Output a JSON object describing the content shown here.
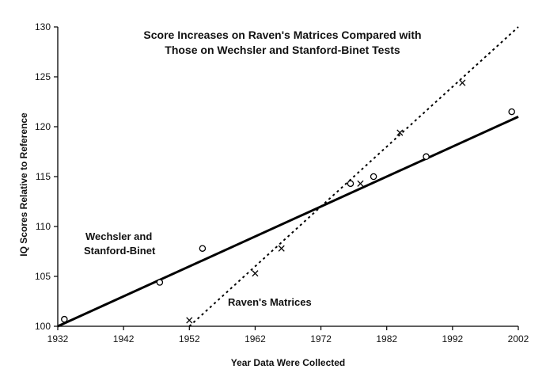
{
  "chart_data": {
    "type": "scatter",
    "title_lines": [
      "Score Increases on Raven's Matrices Compared with",
      "Those on Wechsler and Stanford-Binet Tests"
    ],
    "xlabel": "Year Data Were Collected",
    "ylabel": "IQ Scores Relative to Reference",
    "xlim": [
      1932,
      2002
    ],
    "ylim": [
      100,
      130
    ],
    "x_ticks": [
      1932,
      1942,
      1952,
      1962,
      1972,
      1982,
      1992,
      2002
    ],
    "y_ticks": [
      100,
      105,
      110,
      115,
      120,
      125,
      130
    ],
    "grid": false,
    "series": [
      {
        "label_lines": [
          "Wechsler and",
          "Stanford-Binet"
        ],
        "marker": "o",
        "points": [
          [
            1933,
            100.7
          ],
          [
            1947.5,
            104.4
          ],
          [
            1954,
            107.8
          ],
          [
            1976.5,
            114.3
          ],
          [
            1980,
            115
          ],
          [
            1988,
            117
          ],
          [
            2001,
            121.5
          ]
        ],
        "trend_line": {
          "style": "solid",
          "from": [
            1932,
            100
          ],
          "to": [
            2002,
            121
          ]
        }
      },
      {
        "label_lines": [
          "Raven's Matrices"
        ],
        "marker": "x",
        "points": [
          [
            1952,
            100.6
          ],
          [
            1962,
            105.3
          ],
          [
            1966,
            107.8
          ],
          [
            1978,
            114.3
          ],
          [
            1984,
            119.4
          ],
          [
            1993.5,
            124.4
          ]
        ],
        "trend_line": {
          "style": "dotted",
          "from": [
            1952,
            100
          ],
          "to": [
            2002,
            130
          ]
        }
      }
    ]
  }
}
